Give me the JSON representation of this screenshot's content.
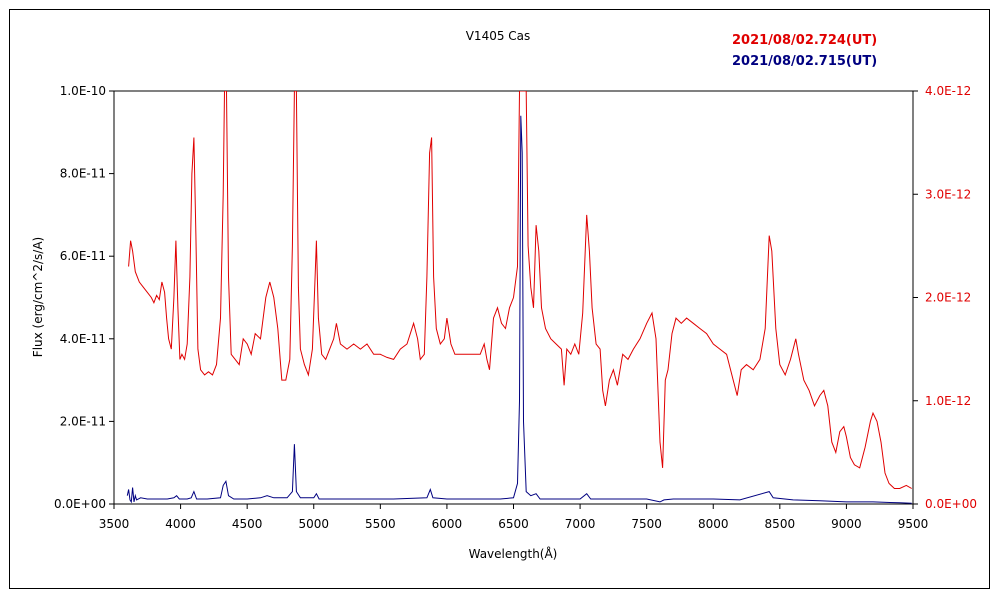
{
  "chart_data": {
    "type": "line",
    "title": "V1405 Cas",
    "xlabel": "Wavelength(Å)",
    "ylabel": "Flux (erg/cm^2/s/A)",
    "xlim": [
      3500,
      9500
    ],
    "x_ticks": [
      "3500",
      "4000",
      "4500",
      "5000",
      "5500",
      "6000",
      "6500",
      "7000",
      "7500",
      "8000",
      "8500",
      "9000",
      "9500"
    ],
    "y_left_lim": [
      0,
      1e-10
    ],
    "y_left_ticks": [
      "0.0E+00",
      "2.0E-11",
      "4.0E-11",
      "6.0E-11",
      "8.0E-11",
      "1.0E-10"
    ],
    "y_right_lim": [
      0,
      4e-12
    ],
    "y_right_ticks": [
      "0.0E+00",
      "1.0E-12",
      "2.0E-12",
      "3.0E-12",
      "4.0E-12"
    ],
    "grid": false,
    "legend_position": "top-right",
    "series": [
      {
        "name": "2021/08/02.724(UT)",
        "color": "#e00000",
        "axis": "right",
        "points": [
          [
            3610,
            2.3e-12
          ],
          [
            3625,
            2.55e-12
          ],
          [
            3640,
            2.45e-12
          ],
          [
            3660,
            2.25e-12
          ],
          [
            3690,
            2.15e-12
          ],
          [
            3720,
            2.1e-12
          ],
          [
            3750,
            2.05e-12
          ],
          [
            3780,
            2e-12
          ],
          [
            3800,
            1.95e-12
          ],
          [
            3820,
            2.02e-12
          ],
          [
            3840,
            1.98e-12
          ],
          [
            3860,
            2.15e-12
          ],
          [
            3880,
            2.05e-12
          ],
          [
            3895,
            1.8e-12
          ],
          [
            3910,
            1.6e-12
          ],
          [
            3930,
            1.5e-12
          ],
          [
            3950,
            2e-12
          ],
          [
            3965,
            2.55e-12
          ],
          [
            3980,
            1.9e-12
          ],
          [
            3995,
            1.4e-12
          ],
          [
            4010,
            1.45e-12
          ],
          [
            4030,
            1.4e-12
          ],
          [
            4050,
            1.55e-12
          ],
          [
            4070,
            2.2e-12
          ],
          [
            4085,
            3.2e-12
          ],
          [
            4100,
            3.55e-12
          ],
          [
            4115,
            2.6e-12
          ],
          [
            4130,
            1.5e-12
          ],
          [
            4150,
            1.3e-12
          ],
          [
            4180,
            1.25e-12
          ],
          [
            4210,
            1.28e-12
          ],
          [
            4240,
            1.25e-12
          ],
          [
            4270,
            1.35e-12
          ],
          [
            4300,
            1.8e-12
          ],
          [
            4320,
            3e-12
          ],
          [
            4330,
            4e-12
          ],
          [
            4345,
            4e-12
          ],
          [
            4360,
            2.2e-12
          ],
          [
            4380,
            1.45e-12
          ],
          [
            4410,
            1.4e-12
          ],
          [
            4440,
            1.35e-12
          ],
          [
            4470,
            1.6e-12
          ],
          [
            4500,
            1.55e-12
          ],
          [
            4530,
            1.45e-12
          ],
          [
            4560,
            1.65e-12
          ],
          [
            4600,
            1.6e-12
          ],
          [
            4640,
            2e-12
          ],
          [
            4670,
            2.15e-12
          ],
          [
            4700,
            2e-12
          ],
          [
            4730,
            1.7e-12
          ],
          [
            4760,
            1.2e-12
          ],
          [
            4790,
            1.2e-12
          ],
          [
            4820,
            1.4e-12
          ],
          [
            4840,
            2.5e-12
          ],
          [
            4855,
            4e-12
          ],
          [
            4870,
            4e-12
          ],
          [
            4885,
            2.1e-12
          ],
          [
            4900,
            1.5e-12
          ],
          [
            4930,
            1.35e-12
          ],
          [
            4960,
            1.25e-12
          ],
          [
            4990,
            1.5e-12
          ],
          [
            5010,
            2.2e-12
          ],
          [
            5020,
            2.55e-12
          ],
          [
            5035,
            1.8e-12
          ],
          [
            5060,
            1.45e-12
          ],
          [
            5090,
            1.4e-12
          ],
          [
            5120,
            1.5e-12
          ],
          [
            5150,
            1.6e-12
          ],
          [
            5170,
            1.75e-12
          ],
          [
            5200,
            1.55e-12
          ],
          [
            5250,
            1.5e-12
          ],
          [
            5300,
            1.55e-12
          ],
          [
            5350,
            1.5e-12
          ],
          [
            5400,
            1.55e-12
          ],
          [
            5450,
            1.45e-12
          ],
          [
            5500,
            1.45e-12
          ],
          [
            5550,
            1.42e-12
          ],
          [
            5600,
            1.4e-12
          ],
          [
            5650,
            1.5e-12
          ],
          [
            5700,
            1.55e-12
          ],
          [
            5750,
            1.75e-12
          ],
          [
            5780,
            1.6e-12
          ],
          [
            5800,
            1.4e-12
          ],
          [
            5830,
            1.45e-12
          ],
          [
            5850,
            2.2e-12
          ],
          [
            5870,
            3.4e-12
          ],
          [
            5885,
            3.55e-12
          ],
          [
            5900,
            2.2e-12
          ],
          [
            5920,
            1.7e-12
          ],
          [
            5950,
            1.55e-12
          ],
          [
            5980,
            1.6e-12
          ],
          [
            6000,
            1.8e-12
          ],
          [
            6030,
            1.55e-12
          ],
          [
            6060,
            1.45e-12
          ],
          [
            6100,
            1.45e-12
          ],
          [
            6150,
            1.45e-12
          ],
          [
            6200,
            1.45e-12
          ],
          [
            6250,
            1.45e-12
          ],
          [
            6280,
            1.55e-12
          ],
          [
            6300,
            1.4e-12
          ],
          [
            6320,
            1.3e-12
          ],
          [
            6350,
            1.8e-12
          ],
          [
            6380,
            1.9e-12
          ],
          [
            6410,
            1.75e-12
          ],
          [
            6440,
            1.7e-12
          ],
          [
            6470,
            1.9e-12
          ],
          [
            6500,
            2e-12
          ],
          [
            6530,
            2.3e-12
          ],
          [
            6545,
            4e-12
          ],
          [
            6595,
            4e-12
          ],
          [
            6610,
            2.5e-12
          ],
          [
            6630,
            2.1e-12
          ],
          [
            6650,
            1.9e-12
          ],
          [
            6670,
            2.7e-12
          ],
          [
            6690,
            2.45e-12
          ],
          [
            6710,
            1.9e-12
          ],
          [
            6740,
            1.7e-12
          ],
          [
            6780,
            1.6e-12
          ],
          [
            6820,
            1.55e-12
          ],
          [
            6860,
            1.5e-12
          ],
          [
            6880,
            1.15e-12
          ],
          [
            6900,
            1.5e-12
          ],
          [
            6930,
            1.45e-12
          ],
          [
            6960,
            1.55e-12
          ],
          [
            6990,
            1.45e-12
          ],
          [
            7020,
            1.85e-12
          ],
          [
            7050,
            2.8e-12
          ],
          [
            7070,
            2.45e-12
          ],
          [
            7090,
            1.9e-12
          ],
          [
            7120,
            1.55e-12
          ],
          [
            7150,
            1.5e-12
          ],
          [
            7170,
            1.1e-12
          ],
          [
            7190,
            9.5e-13
          ],
          [
            7220,
            1.2e-12
          ],
          [
            7250,
            1.3e-12
          ],
          [
            7280,
            1.15e-12
          ],
          [
            7320,
            1.45e-12
          ],
          [
            7360,
            1.4e-12
          ],
          [
            7400,
            1.5e-12
          ],
          [
            7450,
            1.6e-12
          ],
          [
            7500,
            1.75e-12
          ],
          [
            7540,
            1.85e-12
          ],
          [
            7570,
            1.6e-12
          ],
          [
            7600,
            6e-13
          ],
          [
            7620,
            3.5e-13
          ],
          [
            7640,
            1.2e-12
          ],
          [
            7660,
            1.3e-12
          ],
          [
            7690,
            1.65e-12
          ],
          [
            7720,
            1.8e-12
          ],
          [
            7760,
            1.75e-12
          ],
          [
            7800,
            1.8e-12
          ],
          [
            7850,
            1.75e-12
          ],
          [
            7900,
            1.7e-12
          ],
          [
            7950,
            1.65e-12
          ],
          [
            8000,
            1.55e-12
          ],
          [
            8050,
            1.5e-12
          ],
          [
            8100,
            1.45e-12
          ],
          [
            8150,
            1.2e-12
          ],
          [
            8180,
            1.05e-12
          ],
          [
            8210,
            1.3e-12
          ],
          [
            8250,
            1.35e-12
          ],
          [
            8300,
            1.3e-12
          ],
          [
            8350,
            1.4e-12
          ],
          [
            8390,
            1.7e-12
          ],
          [
            8420,
            2.6e-12
          ],
          [
            8440,
            2.45e-12
          ],
          [
            8470,
            1.7e-12
          ],
          [
            8500,
            1.35e-12
          ],
          [
            8540,
            1.25e-12
          ],
          [
            8580,
            1.4e-12
          ],
          [
            8620,
            1.6e-12
          ],
          [
            8640,
            1.45e-12
          ],
          [
            8680,
            1.2e-12
          ],
          [
            8720,
            1.1e-12
          ],
          [
            8760,
            9.5e-13
          ],
          [
            8800,
            1.05e-12
          ],
          [
            8830,
            1.1e-12
          ],
          [
            8860,
            9.5e-13
          ],
          [
            8890,
            6e-13
          ],
          [
            8920,
            5e-13
          ],
          [
            8950,
            7e-13
          ],
          [
            8980,
            7.5e-13
          ],
          [
            9000,
            6.5e-13
          ],
          [
            9030,
            4.5e-13
          ],
          [
            9060,
            3.8e-13
          ],
          [
            9100,
            3.5e-13
          ],
          [
            9140,
            5.5e-13
          ],
          [
            9180,
            8e-13
          ],
          [
            9200,
            8.8e-13
          ],
          [
            9230,
            8e-13
          ],
          [
            9260,
            6e-13
          ],
          [
            9290,
            3e-13
          ],
          [
            9320,
            2e-13
          ],
          [
            9360,
            1.5e-13
          ],
          [
            9400,
            1.5e-13
          ],
          [
            9450,
            1.8e-13
          ],
          [
            9490,
            1.5e-13
          ]
        ]
      },
      {
        "name": "2021/08/02.715(UT)",
        "color": "#000080",
        "axis": "left",
        "points": [
          [
            3600,
            2e-12
          ],
          [
            3610,
            3.5e-12
          ],
          [
            3620,
            1e-12
          ],
          [
            3630,
            5e-13
          ],
          [
            3640,
            4e-12
          ],
          [
            3650,
            5e-13
          ],
          [
            3660,
            2e-12
          ],
          [
            3670,
            1e-12
          ],
          [
            3700,
            1.5e-12
          ],
          [
            3750,
            1.2e-12
          ],
          [
            3800,
            1.2e-12
          ],
          [
            3850,
            1.2e-12
          ],
          [
            3900,
            1.2e-12
          ],
          [
            3950,
            1.5e-12
          ],
          [
            3970,
            2e-12
          ],
          [
            3990,
            1.2e-12
          ],
          [
            4050,
            1.2e-12
          ],
          [
            4080,
            1.5e-12
          ],
          [
            4100,
            3e-12
          ],
          [
            4120,
            1.2e-12
          ],
          [
            4200,
            1.2e-12
          ],
          [
            4300,
            1.5e-12
          ],
          [
            4320,
            4.5e-12
          ],
          [
            4340,
            5.5e-12
          ],
          [
            4360,
            2e-12
          ],
          [
            4400,
            1.2e-12
          ],
          [
            4500,
            1.2e-12
          ],
          [
            4600,
            1.5e-12
          ],
          [
            4650,
            2e-12
          ],
          [
            4700,
            1.5e-12
          ],
          [
            4800,
            1.5e-12
          ],
          [
            4840,
            3e-12
          ],
          [
            4855,
            1.45e-11
          ],
          [
            4870,
            3e-12
          ],
          [
            4900,
            1.5e-12
          ],
          [
            5000,
            1.5e-12
          ],
          [
            5020,
            2.5e-12
          ],
          [
            5040,
            1.2e-12
          ],
          [
            5200,
            1.2e-12
          ],
          [
            5400,
            1.2e-12
          ],
          [
            5600,
            1.2e-12
          ],
          [
            5850,
            1.5e-12
          ],
          [
            5875,
            3.5e-12
          ],
          [
            5895,
            1.5e-12
          ],
          [
            6000,
            1.2e-12
          ],
          [
            6200,
            1.2e-12
          ],
          [
            6400,
            1.2e-12
          ],
          [
            6500,
            1.5e-12
          ],
          [
            6530,
            5e-12
          ],
          [
            6545,
            2.5e-11
          ],
          [
            6555,
            9.4e-11
          ],
          [
            6565,
            8.5e-11
          ],
          [
            6575,
            2e-11
          ],
          [
            6595,
            3e-12
          ],
          [
            6630,
            2e-12
          ],
          [
            6670,
            2.5e-12
          ],
          [
            6700,
            1.2e-12
          ],
          [
            7000,
            1.2e-12
          ],
          [
            7050,
            2.5e-12
          ],
          [
            7080,
            1.2e-12
          ],
          [
            7300,
            1.2e-12
          ],
          [
            7500,
            1.2e-12
          ],
          [
            7600,
            5e-13
          ],
          [
            7630,
            1e-12
          ],
          [
            7700,
            1.2e-12
          ],
          [
            8000,
            1.2e-12
          ],
          [
            8200,
            1e-12
          ],
          [
            8420,
            3e-12
          ],
          [
            8450,
            1.5e-12
          ],
          [
            8600,
            1e-12
          ],
          [
            8800,
            8e-13
          ],
          [
            9000,
            5e-13
          ],
          [
            9200,
            5e-13
          ],
          [
            9400,
            3e-13
          ],
          [
            9490,
            2e-13
          ]
        ]
      }
    ]
  }
}
